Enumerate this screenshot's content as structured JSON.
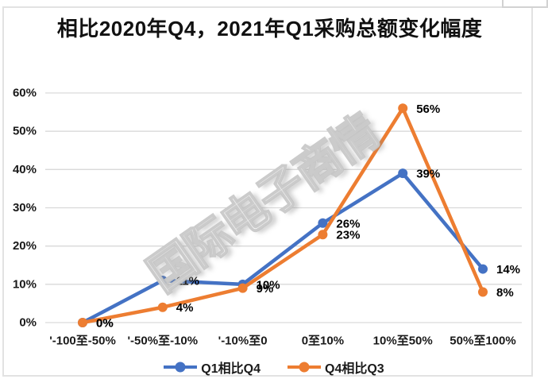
{
  "title": "相比2020年Q4，2021年Q1采购总额变化幅度",
  "watermark": "国际电子商情",
  "chart_data": {
    "type": "line",
    "categories": [
      "'-100至-50%",
      "'-50%至-10%",
      "'-10%至0",
      "0至10%",
      "10%至50%",
      "50%至100%"
    ],
    "series": [
      {
        "name": "Q1相比Q4",
        "color": "#4472C4",
        "values": [
          0,
          11,
          10,
          26,
          39,
          14
        ],
        "labels": [
          "0%",
          "11%",
          "10%",
          "26%",
          "39%",
          "14%"
        ]
      },
      {
        "name": "Q4相比Q3",
        "color": "#ED7D31",
        "values": [
          0,
          4,
          9,
          23,
          56,
          8
        ],
        "labels": [
          "0%",
          "4%",
          "9%",
          "23%",
          "56%",
          "8%"
        ]
      }
    ],
    "y_ticks": [
      "0%",
      "10%",
      "20%",
      "30%",
      "40%",
      "50%",
      "60%"
    ],
    "ylim": [
      0,
      60
    ],
    "xlabel": "",
    "ylabel": "",
    "grid": true,
    "legend_position": "bottom",
    "colors": {
      "grid": "#d9d9d9",
      "label_text": "#1a1a1a"
    }
  }
}
